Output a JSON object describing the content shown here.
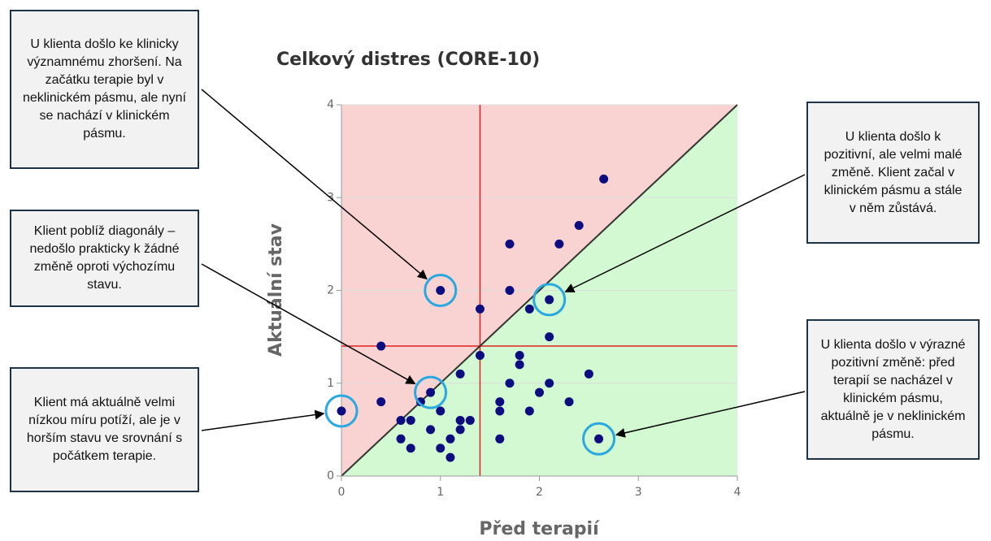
{
  "chart_data": {
    "type": "scatter",
    "title": "Celkový distres (CORE-10)",
    "xlabel": "Před terapií",
    "ylabel": "Aktuální stav",
    "x": [
      2.65,
      2.4,
      1.7,
      2.2,
      1.0,
      1.7,
      1.4,
      1.9,
      2.1,
      2.1,
      0.4,
      1.4,
      1.8,
      1.8,
      1.2,
      1.7,
      2.1,
      2.5,
      0.9,
      2.0,
      0.8,
      0.4,
      1.6,
      2.3,
      0,
      1.0,
      1.6,
      1.9,
      0.6,
      0.7,
      1.2,
      1.3,
      0.9,
      1.2,
      0.6,
      1.1,
      1.6,
      2.6,
      0.7,
      1.0,
      1.1
    ],
    "y": [
      3.2,
      2.7,
      2.5,
      2.5,
      2.0,
      2.0,
      1.8,
      1.8,
      1.9,
      1.5,
      1.4,
      1.3,
      1.3,
      1.2,
      1.1,
      1.0,
      1.0,
      1.1,
      0.9,
      0.9,
      0.8,
      0.8,
      0.8,
      0.8,
      0.7,
      0.7,
      0.7,
      0.7,
      0.6,
      0.6,
      0.6,
      0.6,
      0.5,
      0.5,
      0.4,
      0.4,
      0.4,
      0.4,
      0.3,
      0.3,
      0.2
    ],
    "color": "#0d0d80",
    "xlim": [
      0,
      4
    ],
    "ylim": [
      0,
      4
    ],
    "xticks": [
      0,
      1,
      2,
      3,
      4
    ],
    "yticks": [
      0,
      1,
      2,
      3,
      4
    ],
    "grid": true,
    "cutoff": 1.4,
    "annotations": [
      {
        "text": "U klienta došlo ke klinicky významnému zhoršení. Na začátku terapie byl v neklinickém pásmu, ale nyní se nachází v klinickém pásmu.",
        "x": 1.0,
        "y": 2.0
      },
      {
        "text": "Klient poblíž diagonály – nedošlo prakticky k žádné změně oproti výchozímu stavu.",
        "x": 0.9,
        "y": 0.9
      },
      {
        "text": "Klient má aktuálně velmi nízkou míru potíží, ale je v horším stavu ve srovnání s počátkem terapie.",
        "x": 0,
        "y": 0.7
      },
      {
        "text": "U klienta došlo k pozitivní, ale velmi malé změně. Klient začal v klinickém pásmu a stále v něm zůstává.",
        "x": 2.1,
        "y": 1.9
      },
      {
        "text": "U klienta došlo v výrazné pozitivní změně: před terapií se nacházel v klinickém pásmu, aktuálně je v neklinickém pásmu.",
        "x": 2.6,
        "y": 0.4
      }
    ]
  }
}
